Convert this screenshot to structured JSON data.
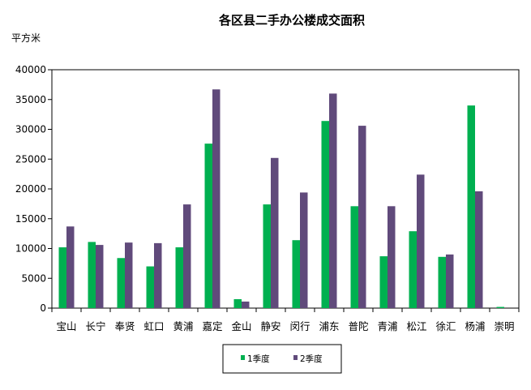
{
  "chart_data": {
    "type": "bar",
    "title": "各区县二手办公楼成交面积",
    "ylabel": "平方米",
    "xlabel": "",
    "ylim": [
      0,
      40000
    ],
    "yticks": [
      0,
      5000,
      10000,
      15000,
      20000,
      25000,
      30000,
      35000,
      40000
    ],
    "categories": [
      "宝山",
      "长宁",
      "奉贤",
      "虹口",
      "黄浦",
      "嘉定",
      "金山",
      "静安",
      "闵行",
      "浦东",
      "普陀",
      "青浦",
      "松江",
      "徐汇",
      "杨浦",
      "崇明"
    ],
    "series": [
      {
        "name": "1季度",
        "color": "#00b050",
        "values": [
          10200,
          11100,
          8400,
          7000,
          10200,
          27600,
          1500,
          17400,
          11400,
          31400,
          17100,
          8700,
          12900,
          8600,
          34000,
          200
        ]
      },
      {
        "name": "2季度",
        "color": "#604a7b",
        "values": [
          13700,
          10600,
          11000,
          10900,
          17400,
          36700,
          1100,
          25200,
          19400,
          36000,
          30600,
          17100,
          22400,
          9000,
          19600,
          0
        ]
      }
    ],
    "grid": false,
    "legend": "bottom-center"
  }
}
